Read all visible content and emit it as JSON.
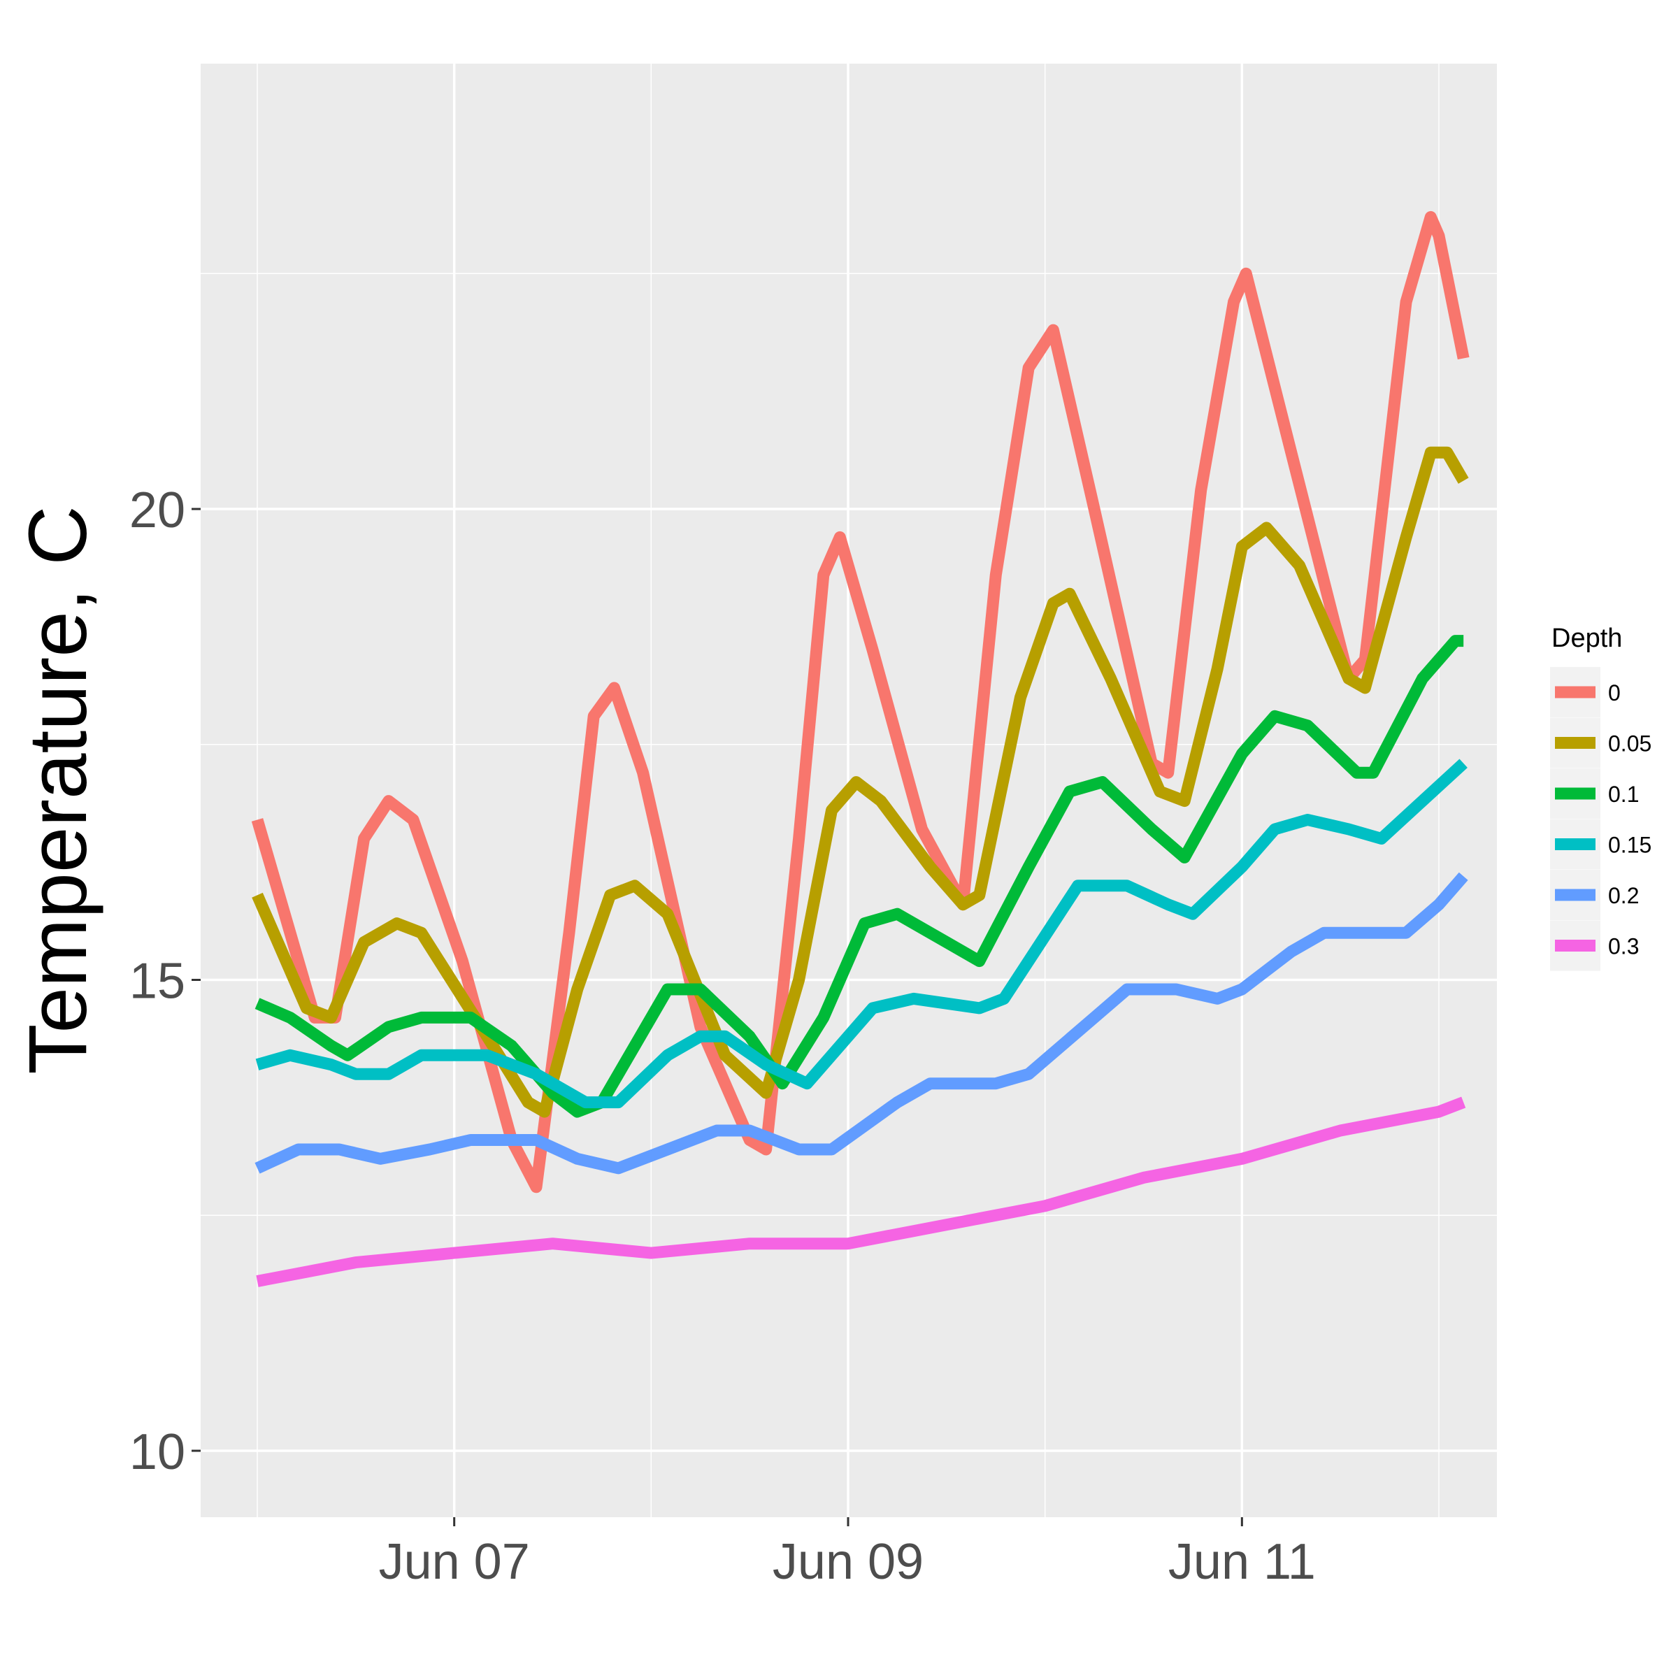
{
  "chart_data": {
    "type": "line",
    "title": "",
    "xlabel": "",
    "ylabel": "Temperature, C",
    "x_axis": {
      "type": "date",
      "range": [
        "2016-06-06T00:00",
        "2016-06-12T00:00"
      ],
      "tick_dates": [
        "2016-06-07",
        "2016-06-09",
        "2016-06-11"
      ],
      "tick_labels": [
        "Jun 07",
        "Jun 09",
        "Jun 11"
      ]
    },
    "ylim": [
      9.4,
      24.8
    ],
    "y_ticks": [
      10,
      15,
      20
    ],
    "y_tick_labels": [
      "10",
      "15",
      "20"
    ],
    "grid": true,
    "legend": {
      "title": "Depth",
      "position": "right"
    },
    "series": [
      {
        "name": "0",
        "color": "#F8766D",
        "points": [
          [
            "2016-06-06T00:00",
            16.7
          ],
          [
            "2016-06-06T07:00",
            14.6
          ],
          [
            "2016-06-06T09:30",
            14.6
          ],
          [
            "2016-06-06T13:00",
            16.5
          ],
          [
            "2016-06-06T16:00",
            16.9
          ],
          [
            "2016-06-06T19:00",
            16.7
          ],
          [
            "2016-06-07T01:00",
            15.2
          ],
          [
            "2016-06-07T07:00",
            13.3
          ],
          [
            "2016-06-07T10:00",
            12.8
          ],
          [
            "2016-06-07T14:00",
            15.5
          ],
          [
            "2016-06-07T17:00",
            17.8
          ],
          [
            "2016-06-07T19:30",
            18.1
          ],
          [
            "2016-06-07T23:00",
            17.2
          ],
          [
            "2016-06-08T06:00",
            14.5
          ],
          [
            "2016-06-08T12:00",
            13.3
          ],
          [
            "2016-06-08T14:00",
            13.2
          ],
          [
            "2016-06-08T18:00",
            16.5
          ],
          [
            "2016-06-08T21:00",
            19.3
          ],
          [
            "2016-06-08T23:00",
            19.7
          ],
          [
            "2016-06-09T03:00",
            18.5
          ],
          [
            "2016-06-09T09:00",
            16.6
          ],
          [
            "2016-06-09T14:00",
            15.8
          ],
          [
            "2016-06-09T18:00",
            19.3
          ],
          [
            "2016-06-09T22:00",
            21.5
          ],
          [
            "2016-06-10T01:00",
            21.9
          ],
          [
            "2016-06-10T06:00",
            20.0
          ],
          [
            "2016-06-10T13:00",
            17.3
          ],
          [
            "2016-06-10T15:00",
            17.2
          ],
          [
            "2016-06-10T19:00",
            20.2
          ],
          [
            "2016-06-10T23:00",
            22.2
          ],
          [
            "2016-06-11T00:30",
            22.5
          ],
          [
            "2016-06-11T06:00",
            20.6
          ],
          [
            "2016-06-11T13:00",
            18.2
          ],
          [
            "2016-06-11T15:00",
            18.4
          ],
          [
            "2016-06-11T20:00",
            22.2
          ],
          [
            "2016-06-11T23:00",
            23.1
          ],
          [
            "2016-06-12T00:00",
            22.9
          ],
          [
            "2016-06-12T03:00",
            21.6
          ]
        ]
      },
      {
        "name": "0.05",
        "color": "#B79F00",
        "points": [
          [
            "2016-06-06T00:00",
            15.9
          ],
          [
            "2016-06-06T06:00",
            14.7
          ],
          [
            "2016-06-06T09:00",
            14.6
          ],
          [
            "2016-06-06T13:00",
            15.4
          ],
          [
            "2016-06-06T17:00",
            15.6
          ],
          [
            "2016-06-06T20:00",
            15.5
          ],
          [
            "2016-06-07T04:00",
            14.4
          ],
          [
            "2016-06-07T09:00",
            13.7
          ],
          [
            "2016-06-07T11:00",
            13.6
          ],
          [
            "2016-06-07T15:00",
            14.9
          ],
          [
            "2016-06-07T19:00",
            15.9
          ],
          [
            "2016-06-07T22:00",
            16.0
          ],
          [
            "2016-06-08T02:00",
            15.7
          ],
          [
            "2016-06-08T09:00",
            14.2
          ],
          [
            "2016-06-08T14:00",
            13.8
          ],
          [
            "2016-06-08T18:00",
            15.0
          ],
          [
            "2016-06-08T22:00",
            16.8
          ],
          [
            "2016-06-09T01:00",
            17.1
          ],
          [
            "2016-06-09T04:00",
            16.9
          ],
          [
            "2016-06-09T10:00",
            16.2
          ],
          [
            "2016-06-09T14:00",
            15.8
          ],
          [
            "2016-06-09T16:00",
            15.9
          ],
          [
            "2016-06-09T21:00",
            18.0
          ],
          [
            "2016-06-10T01:00",
            19.0
          ],
          [
            "2016-06-10T03:00",
            19.1
          ],
          [
            "2016-06-10T08:00",
            18.2
          ],
          [
            "2016-06-10T14:00",
            17.0
          ],
          [
            "2016-06-10T17:00",
            16.9
          ],
          [
            "2016-06-10T21:00",
            18.3
          ],
          [
            "2016-06-11T00:00",
            19.6
          ],
          [
            "2016-06-11T03:00",
            19.8
          ],
          [
            "2016-06-11T07:00",
            19.4
          ],
          [
            "2016-06-11T13:00",
            18.2
          ],
          [
            "2016-06-11T15:00",
            18.1
          ],
          [
            "2016-06-11T20:00",
            19.7
          ],
          [
            "2016-06-11T23:00",
            20.6
          ],
          [
            "2016-06-12T01:00",
            20.6
          ],
          [
            "2016-06-12T03:00",
            20.3
          ]
        ]
      },
      {
        "name": "0.1",
        "color": "#00BA38",
        "points": [
          [
            "2016-06-06T00:00",
            14.75
          ],
          [
            "2016-06-06T04:00",
            14.6
          ],
          [
            "2016-06-06T09:00",
            14.3
          ],
          [
            "2016-06-06T11:00",
            14.2
          ],
          [
            "2016-06-06T16:00",
            14.5
          ],
          [
            "2016-06-06T20:00",
            14.6
          ],
          [
            "2016-06-07T02:00",
            14.6
          ],
          [
            "2016-06-07T07:00",
            14.3
          ],
          [
            "2016-06-07T12:00",
            13.8
          ],
          [
            "2016-06-07T15:00",
            13.6
          ],
          [
            "2016-06-07T18:00",
            13.7
          ],
          [
            "2016-06-07T22:00",
            14.3
          ],
          [
            "2016-06-08T02:00",
            14.9
          ],
          [
            "2016-06-08T06:00",
            14.9
          ],
          [
            "2016-06-08T12:00",
            14.4
          ],
          [
            "2016-06-08T16:00",
            13.9
          ],
          [
            "2016-06-08T21:00",
            14.6
          ],
          [
            "2016-06-09T02:00",
            15.6
          ],
          [
            "2016-06-09T06:00",
            15.7
          ],
          [
            "2016-06-09T12:00",
            15.4
          ],
          [
            "2016-06-09T16:00",
            15.2
          ],
          [
            "2016-06-09T22:00",
            16.2
          ],
          [
            "2016-06-10T03:00",
            17.0
          ],
          [
            "2016-06-10T07:00",
            17.1
          ],
          [
            "2016-06-10T13:00",
            16.6
          ],
          [
            "2016-06-10T17:00",
            16.3
          ],
          [
            "2016-06-11T00:00",
            17.4
          ],
          [
            "2016-06-11T04:00",
            17.8
          ],
          [
            "2016-06-11T08:00",
            17.7
          ],
          [
            "2016-06-11T14:00",
            17.2
          ],
          [
            "2016-06-11T16:00",
            17.2
          ],
          [
            "2016-06-11T22:00",
            18.2
          ],
          [
            "2016-06-12T02:00",
            18.6
          ],
          [
            "2016-06-12T03:00",
            18.6
          ]
        ]
      },
      {
        "name": "0.15",
        "color": "#00BFC4",
        "points": [
          [
            "2016-06-06T00:00",
            14.1
          ],
          [
            "2016-06-06T04:00",
            14.2
          ],
          [
            "2016-06-06T09:00",
            14.1
          ],
          [
            "2016-06-06T12:00",
            14.0
          ],
          [
            "2016-06-06T16:00",
            14.0
          ],
          [
            "2016-06-06T20:00",
            14.2
          ],
          [
            "2016-06-07T04:00",
            14.2
          ],
          [
            "2016-06-07T10:00",
            14.0
          ],
          [
            "2016-06-07T16:00",
            13.7
          ],
          [
            "2016-06-07T20:00",
            13.7
          ],
          [
            "2016-06-08T02:00",
            14.2
          ],
          [
            "2016-06-08T06:00",
            14.4
          ],
          [
            "2016-06-08T09:00",
            14.4
          ],
          [
            "2016-06-08T14:00",
            14.1
          ],
          [
            "2016-06-08T19:00",
            13.9
          ],
          [
            "2016-06-09T00:00",
            14.4
          ],
          [
            "2016-06-09T03:00",
            14.7
          ],
          [
            "2016-06-09T08:00",
            14.8
          ],
          [
            "2016-06-09T16:00",
            14.7
          ],
          [
            "2016-06-09T19:00",
            14.8
          ],
          [
            "2016-06-10T01:00",
            15.6
          ],
          [
            "2016-06-10T04:00",
            16.0
          ],
          [
            "2016-06-10T10:00",
            16.0
          ],
          [
            "2016-06-10T15:00",
            15.8
          ],
          [
            "2016-06-10T18:00",
            15.7
          ],
          [
            "2016-06-11T00:00",
            16.2
          ],
          [
            "2016-06-11T04:00",
            16.6
          ],
          [
            "2016-06-11T08:00",
            16.7
          ],
          [
            "2016-06-11T13:00",
            16.6
          ],
          [
            "2016-06-11T17:00",
            16.5
          ],
          [
            "2016-06-11T22:00",
            16.9
          ],
          [
            "2016-06-12T03:00",
            17.3
          ]
        ]
      },
      {
        "name": "0.2",
        "color": "#619CFF",
        "points": [
          [
            "2016-06-06T00:00",
            13.0
          ],
          [
            "2016-06-06T05:00",
            13.2
          ],
          [
            "2016-06-06T10:00",
            13.2
          ],
          [
            "2016-06-06T15:00",
            13.1
          ],
          [
            "2016-06-06T21:00",
            13.2
          ],
          [
            "2016-06-07T02:00",
            13.3
          ],
          [
            "2016-06-07T10:00",
            13.3
          ],
          [
            "2016-06-07T15:00",
            13.1
          ],
          [
            "2016-06-07T20:00",
            13.0
          ],
          [
            "2016-06-08T02:00",
            13.2
          ],
          [
            "2016-06-08T08:00",
            13.4
          ],
          [
            "2016-06-08T12:00",
            13.4
          ],
          [
            "2016-06-08T18:00",
            13.2
          ],
          [
            "2016-06-08T22:00",
            13.2
          ],
          [
            "2016-06-09T06:00",
            13.7
          ],
          [
            "2016-06-09T10:00",
            13.9
          ],
          [
            "2016-06-09T18:00",
            13.9
          ],
          [
            "2016-06-09T22:00",
            14.0
          ],
          [
            "2016-06-10T06:00",
            14.6
          ],
          [
            "2016-06-10T10:00",
            14.9
          ],
          [
            "2016-06-10T16:00",
            14.9
          ],
          [
            "2016-06-10T21:00",
            14.8
          ],
          [
            "2016-06-11T00:00",
            14.9
          ],
          [
            "2016-06-11T06:00",
            15.3
          ],
          [
            "2016-06-11T10:00",
            15.5
          ],
          [
            "2016-06-11T20:00",
            15.5
          ],
          [
            "2016-06-12T00:00",
            15.8
          ],
          [
            "2016-06-12T03:00",
            16.1
          ]
        ]
      },
      {
        "name": "0.3",
        "color": "#F564E3",
        "points": [
          [
            "2016-06-06T00:00",
            11.8
          ],
          [
            "2016-06-06T06:00",
            11.9
          ],
          [
            "2016-06-06T12:00",
            12.0
          ],
          [
            "2016-06-07T00:00",
            12.1
          ],
          [
            "2016-06-07T12:00",
            12.2
          ],
          [
            "2016-06-08T00:00",
            12.1
          ],
          [
            "2016-06-08T12:00",
            12.2
          ],
          [
            "2016-06-09T00:00",
            12.2
          ],
          [
            "2016-06-09T12:00",
            12.4
          ],
          [
            "2016-06-10T00:00",
            12.6
          ],
          [
            "2016-06-10T12:00",
            12.9
          ],
          [
            "2016-06-11T00:00",
            13.1
          ],
          [
            "2016-06-11T12:00",
            13.4
          ],
          [
            "2016-06-12T00:00",
            13.6
          ],
          [
            "2016-06-12T03:00",
            13.7
          ]
        ]
      }
    ]
  }
}
